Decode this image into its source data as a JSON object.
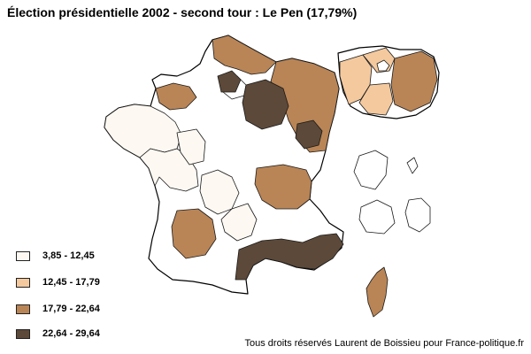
{
  "title": "Élection présidentielle 2002 - second tour : Le Pen (17,79%)",
  "legend": [
    {
      "label": "3,85 - 12,45",
      "color": "#fdf8f2"
    },
    {
      "label": "12,45 - 17,79",
      "color": "#f4c99e"
    },
    {
      "label": "17,79 - 22,64",
      "color": "#b98556"
    },
    {
      "label": "22,64 - 29,64",
      "color": "#5c4939"
    }
  ],
  "credit": "Tous droits réservés Laurent de Boissieu pour France-politique.fr"
}
